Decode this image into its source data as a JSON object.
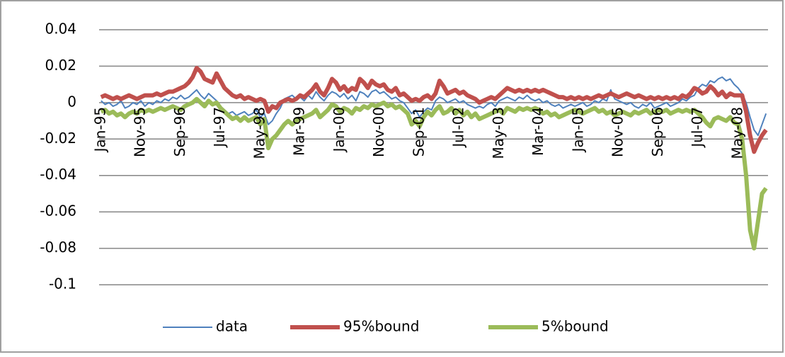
{
  "chart_data": {
    "type": "line",
    "categories": [
      "Jan-95",
      null,
      null,
      null,
      null,
      null,
      null,
      null,
      null,
      null,
      "Nov-95",
      null,
      null,
      null,
      null,
      null,
      null,
      null,
      null,
      null,
      "Sep-96",
      null,
      null,
      null,
      null,
      null,
      null,
      null,
      null,
      null,
      "Jul-97",
      null,
      null,
      null,
      null,
      null,
      null,
      null,
      null,
      null,
      "May-98",
      null,
      null,
      null,
      null,
      null,
      null,
      null,
      null,
      null,
      "Mar-99",
      null,
      null,
      null,
      null,
      null,
      null,
      null,
      null,
      null,
      "Jan-00",
      null,
      null,
      null,
      null,
      null,
      null,
      null,
      null,
      null,
      "Nov-00",
      null,
      null,
      null,
      null,
      null,
      null,
      null,
      null,
      null,
      "Sep-01",
      null,
      null,
      null,
      null,
      null,
      null,
      null,
      null,
      null,
      "Jul-02",
      null,
      null,
      null,
      null,
      null,
      null,
      null,
      null,
      null,
      "May-03",
      null,
      null,
      null,
      null,
      null,
      null,
      null,
      null,
      null,
      "Mar-04",
      null,
      null,
      null,
      null,
      null,
      null,
      null,
      null,
      null,
      "Jan-05",
      null,
      null,
      null,
      null,
      null,
      null,
      null,
      null,
      null,
      "Nov-05",
      null,
      null,
      null,
      null,
      null,
      null,
      null,
      null,
      null,
      "Sep-06",
      null,
      null,
      null,
      null,
      null,
      null,
      null,
      null,
      null,
      "Jul-07",
      null,
      null,
      null,
      null,
      null,
      null,
      null,
      null,
      null,
      "May-08",
      null,
      null,
      null,
      null,
      null,
      null,
      null
    ],
    "series": [
      {
        "name": "data",
        "color": "#4f81bd",
        "width": 2,
        "values": [
          0.001,
          -0.001,
          0.0,
          -0.002,
          -0.001,
          0.001,
          -0.003,
          -0.002,
          0.0,
          -0.001,
          0.001,
          -0.002,
          0.0,
          -0.001,
          0.001,
          0.0,
          0.002,
          0.001,
          0.003,
          0.002,
          0.004,
          0.002,
          0.003,
          0.005,
          0.007,
          0.004,
          0.002,
          0.005,
          0.003,
          0.001,
          -0.002,
          -0.004,
          -0.006,
          -0.005,
          -0.007,
          -0.006,
          -0.005,
          -0.007,
          -0.006,
          -0.004,
          -0.008,
          -0.006,
          -0.012,
          -0.01,
          -0.006,
          -0.003,
          0.002,
          0.003,
          0.004,
          0.002,
          0.003,
          0.001,
          0.004,
          0.002,
          0.006,
          0.003,
          0.001,
          0.004,
          0.006,
          0.005,
          0.003,
          0.005,
          0.002,
          0.004,
          0.001,
          0.006,
          0.005,
          0.003,
          0.006,
          0.007,
          0.005,
          0.006,
          0.004,
          0.002,
          0.003,
          0.001,
          0.0,
          -0.003,
          -0.006,
          -0.004,
          -0.008,
          -0.005,
          -0.003,
          -0.004,
          0.001,
          0.003,
          0.002,
          0.0,
          0.001,
          0.002,
          0.0,
          0.001,
          -0.001,
          -0.002,
          -0.003,
          -0.002,
          -0.003,
          -0.001,
          0.0,
          -0.002,
          0.001,
          0.002,
          0.003,
          0.002,
          0.001,
          0.003,
          0.002,
          0.004,
          0.002,
          0.001,
          0.002,
          0.0,
          0.001,
          -0.001,
          -0.002,
          -0.001,
          -0.003,
          -0.002,
          -0.001,
          -0.002,
          -0.001,
          0.0,
          -0.002,
          -0.001,
          0.001,
          0.0,
          0.002,
          0.001,
          0.007,
          0.002,
          0.001,
          0.0,
          -0.001,
          0.0,
          -0.002,
          -0.003,
          -0.001,
          -0.002,
          0.0,
          -0.003,
          -0.002,
          -0.001,
          0.0,
          -0.002,
          -0.001,
          0.0,
          0.002,
          0.001,
          0.003,
          0.004,
          0.008,
          0.01,
          0.009,
          0.012,
          0.011,
          0.013,
          0.014,
          0.012,
          0.013,
          0.01,
          0.008,
          0.005,
          0.0,
          -0.008,
          -0.015,
          -0.018,
          -0.012,
          -0.006
        ]
      },
      {
        "name": "95%bound",
        "color": "#c0504d",
        "width": 6,
        "values": [
          0.003,
          0.004,
          0.003,
          0.002,
          0.003,
          0.002,
          0.003,
          0.004,
          0.003,
          0.002,
          0.003,
          0.004,
          0.004,
          0.004,
          0.005,
          0.004,
          0.005,
          0.006,
          0.006,
          0.007,
          0.008,
          0.009,
          0.011,
          0.014,
          0.019,
          0.017,
          0.013,
          0.012,
          0.011,
          0.016,
          0.012,
          0.008,
          0.006,
          0.004,
          0.003,
          0.004,
          0.002,
          0.003,
          0.002,
          0.001,
          0.002,
          0.001,
          -0.005,
          -0.002,
          -0.003,
          0.0,
          0.001,
          0.002,
          0.001,
          0.002,
          0.004,
          0.003,
          0.005,
          0.007,
          0.01,
          0.006,
          0.004,
          0.008,
          0.013,
          0.011,
          0.007,
          0.009,
          0.006,
          0.008,
          0.007,
          0.013,
          0.011,
          0.008,
          0.012,
          0.01,
          0.009,
          0.01,
          0.007,
          0.006,
          0.008,
          0.004,
          0.005,
          0.003,
          0.001,
          0.002,
          0.001,
          0.003,
          0.004,
          0.002,
          0.005,
          0.012,
          0.009,
          0.005,
          0.006,
          0.007,
          0.005,
          0.006,
          0.004,
          0.003,
          0.002,
          0.0,
          0.001,
          0.002,
          0.003,
          0.002,
          0.004,
          0.006,
          0.008,
          0.007,
          0.006,
          0.007,
          0.006,
          0.007,
          0.006,
          0.007,
          0.006,
          0.007,
          0.006,
          0.005,
          0.004,
          0.003,
          0.003,
          0.002,
          0.003,
          0.002,
          0.003,
          0.002,
          0.003,
          0.002,
          0.003,
          0.004,
          0.003,
          0.004,
          0.005,
          0.004,
          0.003,
          0.004,
          0.005,
          0.004,
          0.003,
          0.004,
          0.003,
          0.002,
          0.003,
          0.002,
          0.003,
          0.002,
          0.003,
          0.002,
          0.003,
          0.002,
          0.004,
          0.003,
          0.005,
          0.008,
          0.007,
          0.005,
          0.006,
          0.009,
          0.007,
          0.004,
          0.006,
          0.003,
          0.005,
          0.004,
          0.004,
          0.004,
          -0.005,
          -0.018,
          -0.027,
          -0.022,
          -0.018,
          -0.015
        ]
      },
      {
        "name": "5%bound",
        "color": "#9bbb59",
        "width": 6,
        "values": [
          -0.005,
          -0.004,
          -0.006,
          -0.005,
          -0.007,
          -0.006,
          -0.008,
          -0.006,
          -0.005,
          -0.006,
          -0.004,
          -0.005,
          -0.004,
          -0.005,
          -0.004,
          -0.003,
          -0.004,
          -0.003,
          -0.002,
          -0.003,
          -0.004,
          -0.002,
          -0.001,
          0.0,
          0.002,
          0.0,
          -0.002,
          0.001,
          -0.001,
          0.0,
          -0.003,
          -0.005,
          -0.007,
          -0.009,
          -0.008,
          -0.01,
          -0.008,
          -0.01,
          -0.009,
          -0.008,
          -0.012,
          -0.009,
          -0.025,
          -0.02,
          -0.018,
          -0.015,
          -0.012,
          -0.01,
          -0.012,
          -0.01,
          -0.009,
          -0.008,
          -0.007,
          -0.006,
          -0.004,
          -0.008,
          -0.006,
          -0.004,
          -0.001,
          -0.002,
          -0.005,
          -0.003,
          -0.004,
          -0.006,
          -0.003,
          -0.004,
          -0.002,
          -0.003,
          -0.001,
          -0.002,
          -0.001,
          0.0,
          -0.002,
          -0.001,
          -0.003,
          -0.002,
          -0.004,
          -0.006,
          -0.012,
          -0.01,
          -0.013,
          -0.008,
          -0.005,
          -0.007,
          -0.004,
          -0.002,
          -0.006,
          -0.005,
          -0.003,
          -0.006,
          -0.004,
          -0.007,
          -0.005,
          -0.008,
          -0.006,
          -0.009,
          -0.008,
          -0.007,
          -0.006,
          -0.005,
          -0.004,
          -0.006,
          -0.003,
          -0.004,
          -0.005,
          -0.003,
          -0.004,
          -0.003,
          -0.004,
          -0.003,
          -0.004,
          -0.006,
          -0.005,
          -0.007,
          -0.006,
          -0.008,
          -0.007,
          -0.006,
          -0.005,
          -0.004,
          -0.005,
          -0.006,
          -0.005,
          -0.004,
          -0.003,
          -0.005,
          -0.004,
          -0.006,
          -0.005,
          -0.007,
          -0.006,
          -0.005,
          -0.006,
          -0.007,
          -0.005,
          -0.006,
          -0.005,
          -0.004,
          -0.006,
          -0.005,
          -0.004,
          -0.005,
          -0.004,
          -0.006,
          -0.005,
          -0.004,
          -0.005,
          -0.004,
          -0.005,
          -0.004,
          -0.006,
          -0.008,
          -0.011,
          -0.013,
          -0.009,
          -0.008,
          -0.009,
          -0.01,
          -0.008,
          -0.011,
          -0.012,
          -0.02,
          -0.04,
          -0.07,
          -0.08,
          -0.065,
          -0.05,
          -0.047
        ]
      }
    ],
    "ylim": [
      -0.1,
      0.04
    ],
    "yticks": [
      0.04,
      0.02,
      0,
      -0.02,
      -0.04,
      -0.06,
      -0.08,
      -0.1
    ],
    "grid": true,
    "legend": "bottom"
  }
}
